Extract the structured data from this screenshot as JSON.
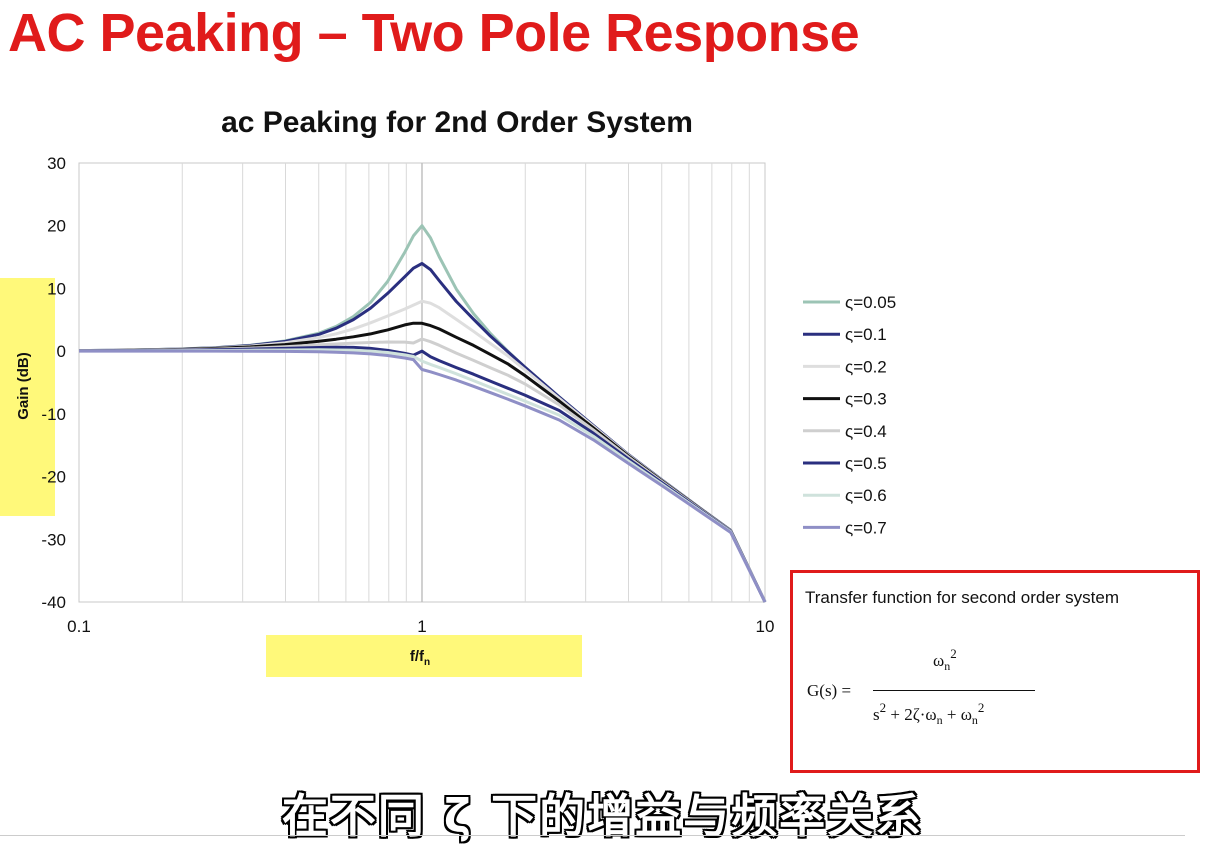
{
  "slide": {
    "title": "AC Peaking – Two Pole Response",
    "subtitle_overlay": "在不同 ζ 下的增益与频率关系",
    "title_color": "#e01b1b",
    "highlight_color": "#fff97a"
  },
  "chart_data": {
    "type": "line",
    "title": "ac Peaking for 2nd Order System",
    "xlabel": "f/f",
    "xlabel_sub": "n",
    "ylabel": "Gain (dB)",
    "x_scale": "log",
    "xlim": [
      0.1,
      10
    ],
    "ylim": [
      -40,
      30
    ],
    "x_ticks": [
      "0.1",
      "1",
      "10"
    ],
    "y_ticks": [
      "30",
      "20",
      "10",
      "0",
      "-10",
      "-20",
      "-30",
      "-40"
    ],
    "grid": true,
    "legend_position": "right",
    "x": [
      0.1,
      0.126,
      0.158,
      0.2,
      0.251,
      0.316,
      0.398,
      0.501,
      0.562,
      0.631,
      0.708,
      0.794,
      0.891,
      0.944,
      1.0,
      1.059,
      1.122,
      1.259,
      1.413,
      1.585,
      1.778,
      1.995,
      2.512,
      3.162,
      3.981,
      5.012,
      6.31,
      7.943,
      10.0
    ],
    "series": [
      {
        "name": "ς=0.05",
        "color": "#9cc4b5",
        "values": [
          0.09,
          0.14,
          0.22,
          0.35,
          0.57,
          0.94,
          1.62,
          2.86,
          3.95,
          5.53,
          7.78,
          11.1,
          15.78,
          18.37,
          20.0,
          18.05,
          15.09,
          9.89,
          5.99,
          2.78,
          0.0,
          -2.54,
          -7.3,
          -11.87,
          -16.41,
          -20.56,
          -24.61,
          -28.58,
          -40.0
        ]
      },
      {
        "name": "ς=0.1",
        "color": "#2a2f7f",
        "values": [
          0.08,
          0.13,
          0.21,
          0.34,
          0.55,
          0.9,
          1.54,
          2.69,
          3.66,
          5.03,
          6.87,
          9.2,
          11.87,
          13.22,
          13.98,
          13.0,
          11.26,
          7.92,
          5.09,
          2.37,
          -0.07,
          -2.55,
          -7.31,
          -11.88,
          -16.42,
          -20.57,
          -24.61,
          -28.59,
          -40.0
        ]
      },
      {
        "name": "ς=0.2",
        "color": "#dedede",
        "values": [
          0.08,
          0.13,
          0.2,
          0.32,
          0.5,
          0.81,
          1.32,
          2.17,
          2.77,
          3.55,
          4.52,
          5.6,
          6.72,
          7.34,
          7.96,
          7.65,
          6.94,
          5.06,
          3.16,
          1.21,
          -0.75,
          -2.97,
          -7.54,
          -12.0,
          -16.49,
          -20.61,
          -24.64,
          -28.61,
          -40.0
        ]
      },
      {
        "name": "ς=0.3",
        "color": "#111111",
        "values": [
          0.07,
          0.11,
          0.18,
          0.28,
          0.43,
          0.67,
          1.05,
          1.59,
          1.91,
          2.28,
          2.75,
          3.38,
          4.19,
          4.46,
          4.44,
          4.07,
          3.55,
          2.2,
          0.91,
          -0.55,
          -2.02,
          -3.89,
          -7.95,
          -12.24,
          -16.62,
          -20.69,
          -24.69,
          -28.64,
          -40.0
        ]
      },
      {
        "name": "ς=0.4",
        "color": "#cfcfcf",
        "values": [
          0.06,
          0.09,
          0.14,
          0.21,
          0.32,
          0.48,
          0.71,
          0.99,
          1.14,
          1.28,
          1.38,
          1.45,
          1.44,
          1.3,
          1.94,
          1.5,
          0.95,
          -0.32,
          -1.48,
          -2.67,
          -3.82,
          -5.22,
          -8.57,
          -12.59,
          -16.82,
          -20.82,
          -24.77,
          -28.69,
          -40.0
        ]
      },
      {
        "name": "ς=0.5",
        "color": "#2a2f7f",
        "values": [
          0.04,
          0.07,
          0.1,
          0.15,
          0.22,
          0.32,
          0.44,
          0.58,
          0.61,
          0.6,
          0.44,
          0.12,
          -0.36,
          -0.65,
          0.0,
          -0.9,
          -1.5,
          -2.62,
          -3.68,
          -4.81,
          -5.91,
          -7.01,
          -9.46,
          -13.1,
          -17.12,
          -21.01,
          -24.88,
          -28.76,
          -40.0
        ]
      },
      {
        "name": "ς=0.6",
        "color": "#cfe2dc",
        "values": [
          0.02,
          0.03,
          0.05,
          0.08,
          0.11,
          0.15,
          0.19,
          0.21,
          0.19,
          0.13,
          0.0,
          -0.22,
          -0.58,
          -0.85,
          -1.58,
          -2.11,
          -2.6,
          -3.62,
          -4.7,
          -5.8,
          -6.88,
          -7.97,
          -10.2,
          -13.6,
          -17.46,
          -21.22,
          -25.02,
          -28.83,
          -40.0
        ]
      },
      {
        "name": "ς=0.7",
        "color": "#8f8fc6",
        "values": [
          0.0,
          0.0,
          0.0,
          0.0,
          0.0,
          -0.01,
          -0.04,
          -0.1,
          -0.17,
          -0.28,
          -0.44,
          -0.7,
          -1.09,
          -1.35,
          -2.92,
          -3.3,
          -3.72,
          -4.62,
          -5.6,
          -6.63,
          -7.65,
          -8.72,
          -10.98,
          -14.16,
          -17.83,
          -21.47,
          -25.18,
          -28.92,
          -40.0
        ]
      }
    ]
  },
  "transfer_function": {
    "caption": "Transfer function for second order system",
    "lhs": "G(s) =",
    "num_base": "ω",
    "num_sub": "n",
    "num_sup": "2",
    "den_s": "s",
    "den_s_sup": "2",
    "den_mid": " + 2ζ·ω",
    "den_mid_sub": "n",
    "den_plus": " + ω",
    "den_end_sub": "n",
    "den_end_sup": "2"
  }
}
